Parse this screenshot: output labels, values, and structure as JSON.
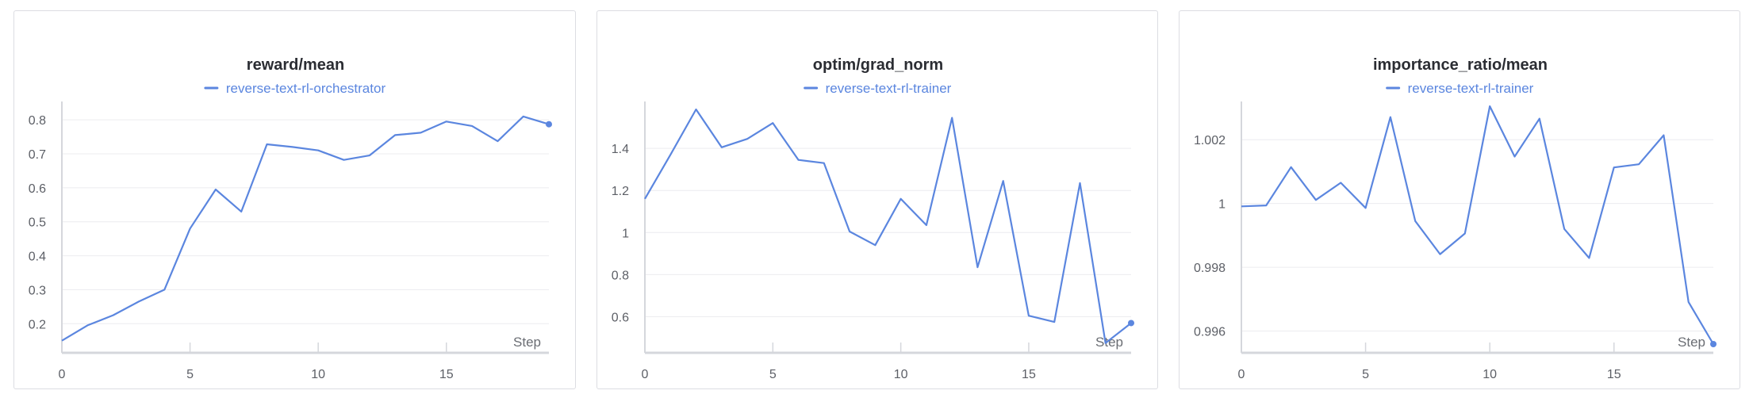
{
  "colors": {
    "series": "#5b86df",
    "grid": "#ececef",
    "axis": "#d5d7dc"
  },
  "chart_data": [
    {
      "type": "line",
      "title": "reward/mean",
      "xlabel": "Step",
      "legend_placement": "top-center",
      "grid": true,
      "xlim": [
        0,
        19
      ],
      "ylim": [
        0.14,
        0.84
      ],
      "xticks": [
        0,
        5,
        10,
        15
      ],
      "xtick_labels": [
        "0",
        "5",
        "10",
        "15"
      ],
      "yticks": [
        0.2,
        0.3,
        0.4,
        0.5,
        0.6,
        0.7,
        0.8
      ],
      "ytick_labels": [
        "0.2",
        "0.3",
        "0.4",
        "0.5",
        "0.6",
        "0.7",
        "0.8"
      ],
      "series": [
        {
          "name": "reverse-text-rl-orchestrator",
          "x": [
            0,
            1,
            2,
            3,
            4,
            5,
            6,
            7,
            8,
            9,
            10,
            11,
            12,
            13,
            14,
            15,
            16,
            17,
            18,
            19
          ],
          "values": [
            0.15,
            0.195,
            0.225,
            0.265,
            0.3,
            0.48,
            0.595,
            0.53,
            0.728,
            0.72,
            0.71,
            0.682,
            0.695,
            0.755,
            0.762,
            0.795,
            0.782,
            0.737,
            0.81,
            0.787
          ]
        }
      ]
    },
    {
      "type": "line",
      "title": "optim/grad_norm",
      "xlabel": "Step",
      "legend_placement": "top-center",
      "grid": true,
      "xlim": [
        0,
        19
      ],
      "ylim": [
        0.47,
        1.6
      ],
      "xticks": [
        0,
        5,
        10,
        15
      ],
      "xtick_labels": [
        "0",
        "5",
        "10",
        "15"
      ],
      "yticks": [
        0.6,
        0.8,
        1.0,
        1.2,
        1.4
      ],
      "ytick_labels": [
        "0.6",
        "0.8",
        "1",
        "1.2",
        "1.4"
      ],
      "series": [
        {
          "name": "reverse-text-rl-trainer",
          "x": [
            0,
            1,
            2,
            3,
            4,
            5,
            6,
            7,
            8,
            9,
            10,
            11,
            12,
            13,
            14,
            15,
            16,
            17,
            18,
            19
          ],
          "values": [
            1.16,
            1.37,
            1.585,
            1.405,
            1.445,
            1.52,
            1.345,
            1.33,
            1.005,
            0.94,
            1.16,
            1.035,
            1.545,
            0.835,
            1.245,
            0.605,
            0.575,
            1.235,
            0.475,
            0.57
          ]
        }
      ]
    },
    {
      "type": "line",
      "title": "importance_ratio/mean",
      "xlabel": "Step",
      "legend_placement": "top-center",
      "grid": true,
      "xlim": [
        0,
        19
      ],
      "ylim": [
        0.99559,
        1.00305
      ],
      "xticks": [
        0,
        5,
        10,
        15
      ],
      "xtick_labels": [
        "0",
        "5",
        "10",
        "15"
      ],
      "yticks": [
        0.996,
        0.998,
        1.0,
        1.002
      ],
      "ytick_labels": [
        "0.996",
        "0.998",
        "1",
        "1.002"
      ],
      "series": [
        {
          "name": "reverse-text-rl-trainer",
          "x": [
            0,
            1,
            2,
            3,
            4,
            5,
            6,
            7,
            8,
            9,
            10,
            11,
            12,
            13,
            14,
            15,
            16,
            17,
            18,
            19
          ],
          "values": [
            0.99991,
            0.99994,
            1.00114,
            1.00011,
            1.00065,
            0.99986,
            1.00271,
            0.99945,
            0.99841,
            0.99906,
            1.00305,
            1.00147,
            1.00266,
            0.9992,
            0.99829,
            1.00113,
            1.00123,
            1.00214,
            0.99691,
            0.99559
          ]
        }
      ]
    }
  ]
}
